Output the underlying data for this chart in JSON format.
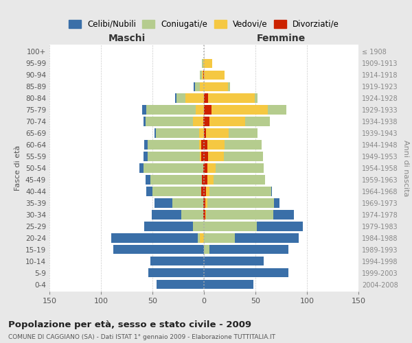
{
  "age_groups": [
    "0-4",
    "5-9",
    "10-14",
    "15-19",
    "20-24",
    "25-29",
    "30-34",
    "35-39",
    "40-44",
    "45-49",
    "50-54",
    "55-59",
    "60-64",
    "65-69",
    "70-74",
    "75-79",
    "80-84",
    "85-89",
    "90-94",
    "95-99",
    "100+"
  ],
  "anni_nascita": [
    "2004-2008",
    "1999-2003",
    "1994-1998",
    "1989-1993",
    "1984-1988",
    "1979-1983",
    "1974-1978",
    "1969-1973",
    "1964-1968",
    "1959-1963",
    "1954-1958",
    "1949-1953",
    "1944-1948",
    "1939-1943",
    "1934-1938",
    "1929-1933",
    "1924-1928",
    "1919-1923",
    "1914-1918",
    "1909-1913",
    "≤ 1908"
  ],
  "maschi": {
    "celibi": [
      46,
      54,
      52,
      88,
      84,
      47,
      29,
      17,
      6,
      5,
      4,
      4,
      3,
      1,
      2,
      4,
      1,
      1,
      0,
      0,
      0
    ],
    "coniugati": [
      0,
      0,
      0,
      0,
      2,
      11,
      21,
      30,
      47,
      50,
      58,
      51,
      50,
      42,
      46,
      48,
      9,
      5,
      2,
      1,
      0
    ],
    "vedovi": [
      0,
      0,
      0,
      0,
      4,
      0,
      0,
      0,
      0,
      0,
      0,
      1,
      2,
      5,
      10,
      8,
      18,
      4,
      1,
      1,
      0
    ],
    "divorziati": [
      0,
      0,
      0,
      0,
      0,
      0,
      1,
      1,
      3,
      2,
      1,
      3,
      3,
      0,
      1,
      0,
      0,
      0,
      1,
      0,
      0
    ]
  },
  "femmine": {
    "nubili": [
      48,
      82,
      58,
      77,
      62,
      45,
      20,
      5,
      1,
      0,
      0,
      0,
      0,
      0,
      0,
      0,
      0,
      0,
      0,
      0,
      0
    ],
    "coniugate": [
      0,
      0,
      0,
      5,
      30,
      51,
      65,
      65,
      60,
      50,
      47,
      38,
      36,
      28,
      24,
      18,
      3,
      2,
      0,
      0,
      0
    ],
    "vedove": [
      0,
      0,
      0,
      0,
      0,
      0,
      1,
      2,
      3,
      6,
      8,
      15,
      17,
      22,
      35,
      55,
      45,
      23,
      20,
      8,
      0
    ],
    "divorziate": [
      0,
      0,
      0,
      0,
      0,
      0,
      1,
      1,
      2,
      3,
      3,
      4,
      3,
      2,
      5,
      7,
      4,
      0,
      0,
      0,
      0
    ]
  },
  "colors": {
    "celibi": "#3a6fa8",
    "coniugati": "#b5cc8e",
    "vedovi": "#f5c842",
    "divorziati": "#cc2200"
  },
  "xlim": 150,
  "title": "Popolazione per età, sesso e stato civile - 2009",
  "subtitle": "COMUNE DI CAGGIANO (SA) - Dati ISTAT 1° gennaio 2009 - Elaborazione TUTTITALIA.IT",
  "xlabel_left": "Maschi",
  "xlabel_right": "Femmine",
  "ylabel_left": "Fasce di età",
  "ylabel_right": "Anni di nascita",
  "bg_color": "#e8e8e8",
  "plot_bg_color": "#ffffff"
}
